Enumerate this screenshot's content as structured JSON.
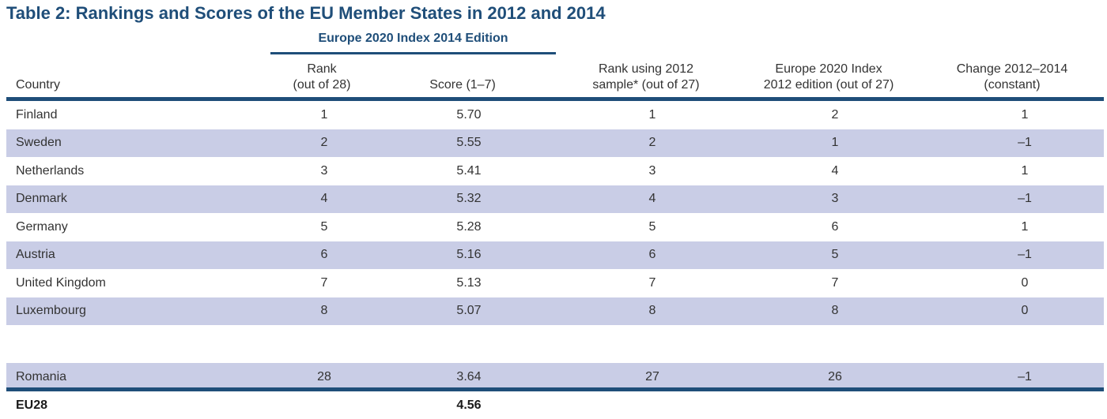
{
  "title": "Table 2: Rankings and Scores of the EU Member States in 2012 and 2014",
  "edition_header": "Europe 2020 Index 2014 Edition",
  "columns": {
    "country": "Country",
    "rank_l1": "Rank",
    "rank_l2": "(out of 28)",
    "score": "Score (1–7)",
    "rank2012_l1": "Rank using 2012",
    "rank2012_l2": "sample* (out of 27)",
    "index2012_l1": "Europe 2020 Index",
    "index2012_l2": "2012 edition (out of 27)",
    "change_l1": "Change 2012–2014",
    "change_l2": "(constant)"
  },
  "rows": [
    {
      "country": "Finland",
      "rank": "1",
      "score": "5.70",
      "rank_2012_sample": "1",
      "index_2012": "2",
      "change": "1"
    },
    {
      "country": "Sweden",
      "rank": "2",
      "score": "5.55",
      "rank_2012_sample": "2",
      "index_2012": "1",
      "change": "–1"
    },
    {
      "country": "Netherlands",
      "rank": "3",
      "score": "5.41",
      "rank_2012_sample": "3",
      "index_2012": "4",
      "change": "1"
    },
    {
      "country": "Denmark",
      "rank": "4",
      "score": "5.32",
      "rank_2012_sample": "4",
      "index_2012": "3",
      "change": "–1"
    },
    {
      "country": "Germany",
      "rank": "5",
      "score": "5.28",
      "rank_2012_sample": "5",
      "index_2012": "6",
      "change": "1"
    },
    {
      "country": "Austria",
      "rank": "6",
      "score": "5.16",
      "rank_2012_sample": "6",
      "index_2012": "5",
      "change": "–1"
    },
    {
      "country": "United Kingdom",
      "rank": "7",
      "score": "5.13",
      "rank_2012_sample": "7",
      "index_2012": "7",
      "change": "0"
    },
    {
      "country": "Luxembourg",
      "rank": "8",
      "score": "5.07",
      "rank_2012_sample": "8",
      "index_2012": "8",
      "change": "0"
    }
  ],
  "romania": {
    "country": "Romania",
    "rank": "28",
    "score": "3.64",
    "rank_2012_sample": "27",
    "index_2012": "26",
    "change": "–1"
  },
  "footer": {
    "label": "EU28",
    "score": "4.56"
  }
}
